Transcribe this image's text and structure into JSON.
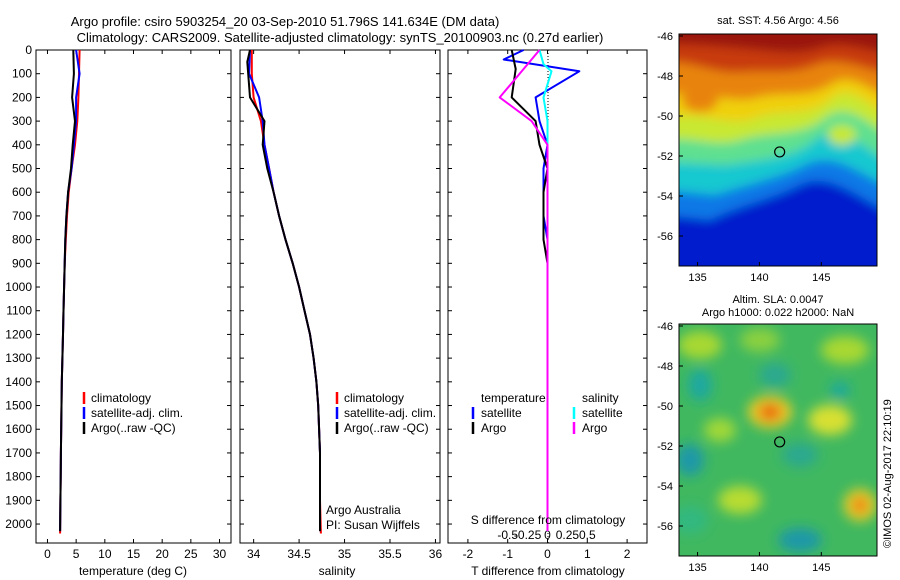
{
  "title_line1": "Argo profile: csiro 5903254_20 03-Sep-2010 51.796S 141.634E (DM data)",
  "title_line2": "Climatology: CARS2009. Satellite-adjusted climatology: synTS_20100903.nc (0.27d earlier)",
  "colors": {
    "climatology": "#ff0000",
    "satellite": "#0000ff",
    "argo": "#000000",
    "salinity_satellite": "#00ffff",
    "salinity_argo": "#ff00ff"
  },
  "panels": {
    "temperature": {
      "xlabel": "temperature (deg C)",
      "xticks": [
        "0",
        "5",
        "10",
        "15",
        "20",
        "25",
        "30"
      ],
      "legend": [
        "climatology",
        "satellite-adj. clim.",
        "Argo(..raw -QC)"
      ]
    },
    "salinity": {
      "xlabel": "salinity",
      "xticks": [
        "34",
        "34.5",
        "35",
        "35.5",
        "36"
      ],
      "legend": [
        "climatology",
        "satellite-adj. clim.",
        "Argo(..raw -QC)"
      ],
      "credit1": "Argo Australia",
      "credit2": "PI: Susan Wijffels"
    },
    "difference": {
      "xlabel": "T difference from climatology",
      "xlabel_top": "S difference from climatology",
      "xticks": [
        "-2",
        "-1",
        "0",
        "1",
        "2"
      ],
      "sticks": [
        "-0.5",
        "-0.25",
        "0",
        "0.25",
        "0.5"
      ],
      "legend_temp_title": "temperature",
      "legend_sal_title": "salinity",
      "legend_items": [
        "satellite",
        "Argo"
      ]
    },
    "sst_map": {
      "title": "sat. SST: 4.56 Argo: 4.56",
      "yticks": [
        "-46",
        "-48",
        "-50",
        "-52",
        "-54",
        "-56"
      ],
      "xticks": [
        "135",
        "140",
        "145"
      ]
    },
    "sla_map": {
      "title1": "Altim. SLA: 0.0047",
      "title2": "Argo h1000: 0.022 h2000: NaN",
      "yticks": [
        "-46",
        "-48",
        "-50",
        "-52",
        "-54",
        "-56"
      ],
      "xticks": [
        "135",
        "140",
        "145"
      ]
    }
  },
  "watermark": "©IMOS 02-Aug-2017 22:10:19",
  "chart_data": [
    {
      "type": "line",
      "name": "temperature profile",
      "xlabel": "temperature (deg C)",
      "ylabel": "",
      "xlim": [
        -2,
        32
      ],
      "ylim": [
        2080,
        0
      ],
      "yaxis": "depth",
      "yticks": [
        0,
        100,
        200,
        300,
        400,
        500,
        600,
        700,
        800,
        900,
        1000,
        1100,
        1200,
        1300,
        1400,
        1500,
        1600,
        1700,
        1800,
        1900,
        2000
      ],
      "series": [
        {
          "name": "climatology",
          "x": [
            5.6,
            5.5,
            5.4,
            5.2,
            4.8,
            4.2,
            3.7,
            3.4,
            3.2,
            3.0,
            2.9,
            2.8,
            2.7,
            2.6,
            2.5,
            2.45,
            2.4,
            2.35,
            2.3,
            2.25,
            2.2
          ],
          "y": [
            0,
            100,
            200,
            300,
            400,
            500,
            600,
            700,
            800,
            900,
            1000,
            1100,
            1200,
            1300,
            1400,
            1500,
            1600,
            1700,
            1800,
            1900,
            2040
          ]
        },
        {
          "name": "satellite-adj. clim.",
          "x": [
            5.0,
            5.6,
            5.0,
            5.0,
            4.6,
            4.2,
            3.6,
            3.3,
            3.1,
            3.0,
            2.9,
            2.8,
            2.7,
            2.6,
            2.5,
            2.45,
            2.4,
            2.35,
            2.3,
            2.25,
            2.2
          ],
          "y": [
            0,
            100,
            200,
            300,
            400,
            500,
            600,
            700,
            800,
            900,
            1000,
            1100,
            1200,
            1300,
            1400,
            1500,
            1600,
            1700,
            1800,
            1900,
            2030
          ]
        },
        {
          "name": "Argo(..raw -QC)",
          "x": [
            4.5,
            4.6,
            4.3,
            4.8,
            4.4,
            4.1,
            3.6,
            3.3,
            3.1,
            3.0,
            2.9,
            2.8,
            2.7,
            2.6,
            2.5,
            2.45,
            2.4,
            2.35,
            2.3,
            2.25,
            2.2
          ],
          "y": [
            0,
            100,
            200,
            300,
            400,
            500,
            600,
            700,
            800,
            900,
            1000,
            1100,
            1200,
            1300,
            1400,
            1500,
            1600,
            1700,
            1800,
            1900,
            2030
          ]
        }
      ]
    },
    {
      "type": "line",
      "name": "salinity profile",
      "xlabel": "salinity",
      "xlim": [
        33.85,
        36.05
      ],
      "ylim": [
        2080,
        0
      ],
      "series": [
        {
          "name": "climatology",
          "x": [
            33.98,
            33.98,
            34.0,
            34.08,
            34.12,
            34.17,
            34.22,
            34.28,
            34.35,
            34.43,
            34.5,
            34.56,
            34.62,
            34.66,
            34.69,
            34.71,
            34.72,
            34.73,
            34.73,
            34.73,
            34.74
          ],
          "y": [
            0,
            100,
            200,
            300,
            400,
            500,
            600,
            700,
            800,
            900,
            1000,
            1100,
            1200,
            1300,
            1400,
            1500,
            1600,
            1700,
            1800,
            1900,
            2040
          ]
        },
        {
          "name": "satellite-adj. clim.",
          "x": [
            33.96,
            33.95,
            34.06,
            34.1,
            34.12,
            34.17,
            34.22,
            34.28,
            34.35,
            34.43,
            34.5,
            34.56,
            34.62,
            34.66,
            34.69,
            34.71,
            34.72,
            34.73,
            34.73,
            34.73,
            34.73
          ],
          "y": [
            0,
            100,
            200,
            300,
            400,
            500,
            600,
            700,
            800,
            900,
            1000,
            1100,
            1200,
            1300,
            1400,
            1500,
            1600,
            1700,
            1800,
            1900,
            2030
          ]
        },
        {
          "name": "Argo(..raw -QC)",
          "x": [
            33.96,
            33.93,
            33.96,
            34.12,
            34.1,
            34.15,
            34.22,
            34.28,
            34.35,
            34.43,
            34.5,
            34.56,
            34.62,
            34.66,
            34.69,
            34.71,
            34.72,
            34.73,
            34.73,
            34.73,
            34.73
          ],
          "y": [
            0,
            50,
            200,
            300,
            400,
            500,
            600,
            700,
            800,
            900,
            1000,
            1100,
            1200,
            1300,
            1400,
            1500,
            1600,
            1700,
            1800,
            1900,
            2030
          ]
        }
      ]
    },
    {
      "type": "line",
      "name": "difference from climatology",
      "xlabel": "T difference from climatology",
      "xlim": [
        -2.5,
        2.5
      ],
      "ylim": [
        2080,
        0
      ],
      "series": [
        {
          "name": "temperature satellite",
          "x": [
            -0.6,
            -1.1,
            0.8,
            -0.3,
            -0.2,
            0.0,
            -0.1,
            -0.1,
            -0.1,
            0.0,
            0.0,
            0.0,
            0.0,
            0.0,
            0.0,
            0.0,
            0.0,
            0.0
          ],
          "y": [
            0,
            40,
            90,
            200,
            300,
            400,
            500,
            600,
            700,
            800,
            900,
            1000,
            1200,
            1400,
            1600,
            1800,
            1900,
            2000
          ]
        },
        {
          "name": "temperature Argo",
          "x": [
            -0.9,
            -0.8,
            -0.9,
            -0.3,
            -0.2,
            0.0,
            -0.1,
            -0.1,
            -0.1,
            0.0,
            0.0,
            0.0,
            0.0,
            0.0,
            0.0,
            0.0,
            0.0,
            0.0
          ],
          "y": [
            0,
            80,
            200,
            300,
            400,
            500,
            600,
            700,
            800,
            900,
            1000,
            1100,
            1200,
            1400,
            1600,
            1800,
            1900,
            2000
          ]
        },
        {
          "name": "salinity satellite",
          "x": [
            -0.2,
            -0.1,
            0.1,
            -0.1,
            0.0,
            0.0,
            0.0,
            0.0,
            0.0,
            0.0,
            0.0,
            0.0,
            0.0,
            0.0,
            0.0,
            0.0,
            0.0
          ],
          "y": [
            0,
            60,
            90,
            200,
            300,
            400,
            500,
            600,
            800,
            1000,
            1200,
            1400,
            1600,
            1800,
            1900,
            2000,
            2030
          ]
        },
        {
          "name": "salinity Argo",
          "x": [
            -0.2,
            -0.6,
            -1.2,
            -0.4,
            0.0,
            0.0,
            0.0,
            0.0,
            0.0,
            0.0,
            0.0,
            0.0,
            0.0,
            0.0,
            0.0,
            0.0,
            0.0
          ],
          "y": [
            0,
            80,
            200,
            300,
            400,
            500,
            600,
            700,
            800,
            1000,
            1200,
            1400,
            1600,
            1800,
            1900,
            2000,
            2030
          ]
        }
      ]
    },
    {
      "type": "heatmap",
      "name": "satellite SST map",
      "title": "sat. SST: 4.56 Argo: 4.56",
      "xlim": [
        133.5,
        149.5
      ],
      "ylim": [
        -57.5,
        -45.9
      ],
      "argo_position": {
        "lon": 141.634,
        "lat": -51.796
      }
    },
    {
      "type": "heatmap",
      "name": "altimeter SLA map",
      "title": "Altim. SLA: 0.0047",
      "xlim": [
        133.5,
        149.5
      ],
      "ylim": [
        -57.5,
        -45.9
      ],
      "argo_position": {
        "lon": 141.634,
        "lat": -51.796
      }
    }
  ]
}
